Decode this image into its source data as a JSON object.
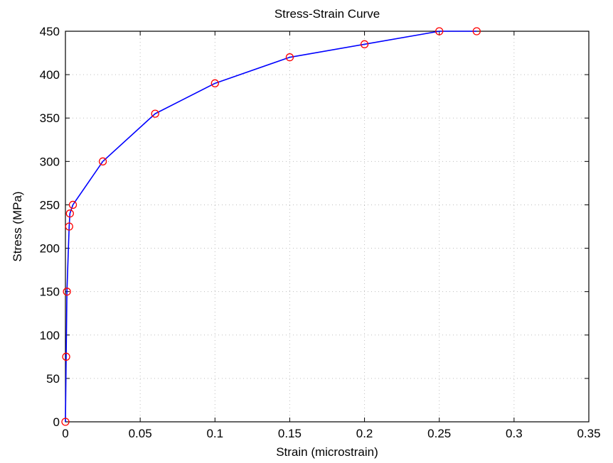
{
  "chart_data": {
    "type": "line",
    "title": "Stress-Strain Curve",
    "xlabel": "Strain (microstrain)",
    "ylabel": "Stress (MPa)",
    "xlim": [
      0,
      0.35
    ],
    "ylim": [
      0,
      450
    ],
    "x_ticks": [
      0,
      0.05,
      0.1,
      0.15,
      0.2,
      0.25,
      0.3,
      0.35
    ],
    "x_tick_labels": [
      "0",
      "0.05",
      "0.1",
      "0.15",
      "0.2",
      "0.25",
      "0.3",
      "0.35"
    ],
    "y_ticks": [
      0,
      50,
      100,
      150,
      200,
      250,
      300,
      350,
      400,
      450
    ],
    "y_tick_labels": [
      "0",
      "50",
      "100",
      "150",
      "200",
      "250",
      "300",
      "350",
      "400",
      "450"
    ],
    "grid": "dotted",
    "legend": "none",
    "series": [
      {
        "line_color": "#0000ff",
        "marker": "circle",
        "marker_color": "#ff0000",
        "points": [
          {
            "x": 0,
            "y": 0
          },
          {
            "x": 0.0005,
            "y": 75
          },
          {
            "x": 0.001,
            "y": 150
          },
          {
            "x": 0.0025,
            "y": 225
          },
          {
            "x": 0.003,
            "y": 240
          },
          {
            "x": 0.005,
            "y": 250
          },
          {
            "x": 0.025,
            "y": 300
          },
          {
            "x": 0.06,
            "y": 355
          },
          {
            "x": 0.1,
            "y": 390
          },
          {
            "x": 0.15,
            "y": 420
          },
          {
            "x": 0.2,
            "y": 435
          },
          {
            "x": 0.25,
            "y": 450
          },
          {
            "x": 0.275,
            "y": 450
          }
        ]
      }
    ]
  }
}
